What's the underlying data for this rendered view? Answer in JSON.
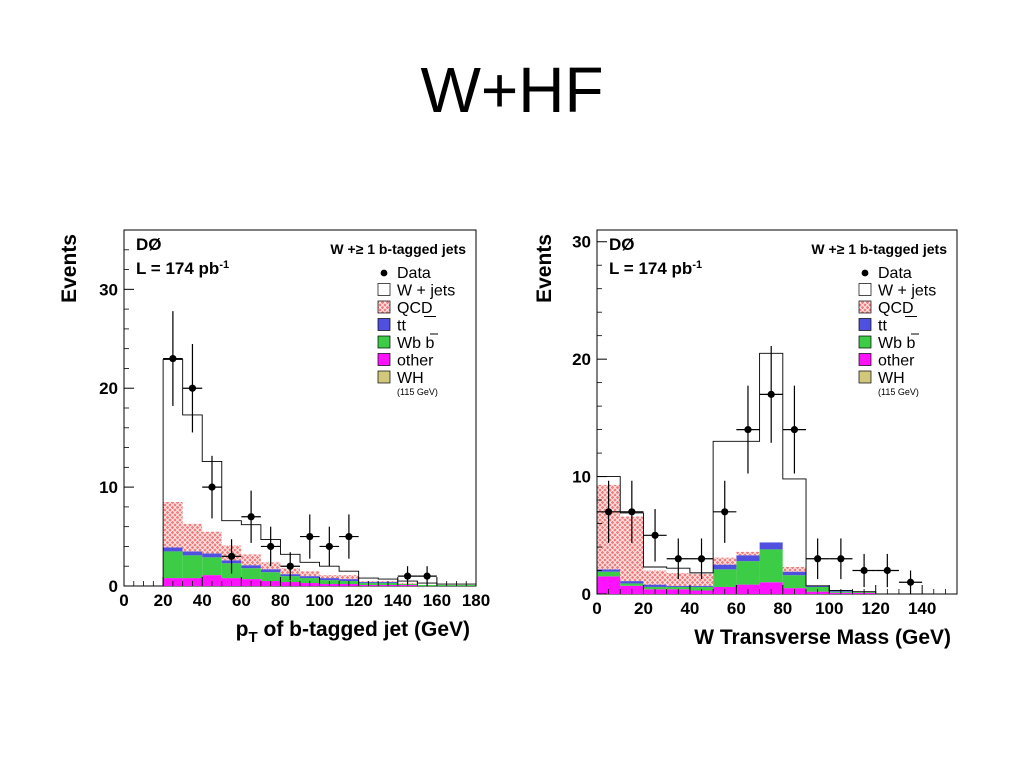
{
  "slide": {
    "title": "W+HF"
  },
  "colors": {
    "qcd": "#f08080",
    "ttbar": "#5050e0",
    "wbb": "#3ccc46",
    "other": "#ff12ff",
    "wh": "#d2c87c",
    "wjets": "#ffffff",
    "data": "#000000"
  },
  "chart_data": [
    {
      "type": "bar",
      "stacked": true,
      "experiment": "DØ",
      "luminosity": "L = 174 pb",
      "luminosity_exp": "-1",
      "selection": "W +≥ 1 b-tagged jets",
      "xlabel": "p",
      "xlabel_sub": "T",
      "xlabel_rest": " of b-tagged jet  (GeV)",
      "ylabel": "Events",
      "xlim": [
        0,
        180
      ],
      "ylim": [
        0,
        36
      ],
      "xticks": [
        0,
        20,
        40,
        60,
        80,
        100,
        120,
        140,
        160,
        180
      ],
      "yticks": [
        0,
        10,
        20,
        30
      ],
      "grid": false,
      "legend_position": "top-right",
      "legend": [
        "Data",
        "W + jets",
        "QCD",
        "tt",
        "Wb b",
        "other",
        "WH",
        "(115 GeV)"
      ],
      "bin_edges": [
        20,
        30,
        40,
        50,
        60,
        70,
        80,
        90,
        100,
        110,
        120,
        130,
        140,
        150,
        160,
        170,
        180
      ],
      "series": [
        {
          "name": "other",
          "color_key": "other",
          "values": [
            0.8,
            0.8,
            1.1,
            0.8,
            0.7,
            0.5,
            0.4,
            0.3,
            0.2,
            0.2,
            0.1,
            0.1,
            0.1,
            0.0,
            0.0,
            0.0
          ]
        },
        {
          "name": "Wb b",
          "color_key": "wbb",
          "values": [
            2.7,
            2.3,
            1.8,
            1.5,
            1.1,
            0.9,
            0.6,
            0.5,
            0.4,
            0.3,
            0.2,
            0.2,
            0.1,
            0.1,
            0.1,
            0.1
          ]
        },
        {
          "name": "tt",
          "color_key": "ttbar",
          "values": [
            0.4,
            0.4,
            0.4,
            0.3,
            0.3,
            0.3,
            0.2,
            0.2,
            0.2,
            0.2,
            0.1,
            0.1,
            0.0,
            0.0,
            0.0,
            0.0
          ]
        },
        {
          "name": "QCD",
          "color_key": "qcd",
          "values": [
            4.6,
            2.8,
            2.2,
            1.5,
            1.1,
            0.7,
            0.6,
            0.5,
            0.3,
            0.4,
            0.1,
            0.1,
            0.1,
            0.0,
            0.0,
            0.0
          ]
        },
        {
          "name": "W + jets",
          "color_key": "wjets",
          "values": [
            14.4,
            11.0,
            7.1,
            2.5,
            3.0,
            2.3,
            1.4,
            0.9,
            0.9,
            0.4,
            0.3,
            0.2,
            0.2,
            0.2,
            0.1,
            0.1
          ]
        }
      ],
      "data_points": {
        "x": [
          25,
          35,
          45,
          55,
          65,
          75,
          85,
          95,
          105,
          115,
          145,
          155
        ],
        "y": [
          23,
          20,
          10,
          3,
          7,
          4,
          2,
          5,
          4,
          5,
          1,
          1
        ]
      }
    },
    {
      "type": "bar",
      "stacked": true,
      "experiment": "DØ",
      "luminosity": "L = 174 pb",
      "luminosity_exp": "-1",
      "selection": "W +≥ 1 b-tagged jets",
      "xlabel": "W Transverse Mass (GeV)",
      "xlabel_sub": "",
      "xlabel_rest": "",
      "ylabel": "Events",
      "xlim": [
        0,
        155
      ],
      "ylim": [
        0,
        31
      ],
      "xticks": [
        0,
        20,
        40,
        60,
        80,
        100,
        120,
        140
      ],
      "yticks": [
        0,
        10,
        20,
        30
      ],
      "grid": false,
      "legend_position": "top-right",
      "legend": [
        "Data",
        "W + jets",
        "QCD",
        "tt",
        "Wb b",
        "other",
        "WH",
        "(115 GeV)"
      ],
      "bin_edges": [
        0,
        10,
        20,
        30,
        40,
        50,
        60,
        70,
        80,
        90,
        100,
        110,
        120,
        130,
        140,
        150
      ],
      "series": [
        {
          "name": "other",
          "color_key": "other",
          "values": [
            1.5,
            0.7,
            0.4,
            0.4,
            0.3,
            0.6,
            0.8,
            1.0,
            0.5,
            0.2,
            0.1,
            0.1,
            0.0,
            0.0,
            0.0
          ]
        },
        {
          "name": "Wb b",
          "color_key": "wbb",
          "values": [
            0.4,
            0.2,
            0.2,
            0.2,
            0.3,
            1.5,
            2.0,
            2.8,
            1.1,
            0.4,
            0.1,
            0.1,
            0.0,
            0.0,
            0.0
          ]
        },
        {
          "name": "tt",
          "color_key": "ttbar",
          "values": [
            0.2,
            0.2,
            0.2,
            0.1,
            0.1,
            0.4,
            0.5,
            0.6,
            0.3,
            0.1,
            0.1,
            0.0,
            0.0,
            0.0,
            0.0
          ]
        },
        {
          "name": "QCD",
          "color_key": "qcd",
          "values": [
            7.2,
            5.5,
            1.2,
            1.1,
            1.0,
            0.6,
            0.3,
            0.0,
            0.4,
            0.0,
            0.0,
            0.0,
            0.0,
            0.0,
            0.0
          ]
        },
        {
          "name": "W + jets",
          "color_key": "wjets",
          "values": [
            0.7,
            0.3,
            0.3,
            0.4,
            0.1,
            9.9,
            9.4,
            16.1,
            7.5,
            0.0,
            0.0,
            0.0,
            0.0,
            0.0,
            0.0
          ]
        }
      ],
      "data_points": {
        "x": [
          5,
          15,
          25,
          35,
          45,
          55,
          65,
          75,
          85,
          95,
          105,
          115,
          125,
          135
        ],
        "y": [
          7,
          7,
          5,
          3,
          3,
          7,
          14,
          17,
          14,
          3,
          3,
          2,
          2,
          1
        ]
      }
    }
  ]
}
